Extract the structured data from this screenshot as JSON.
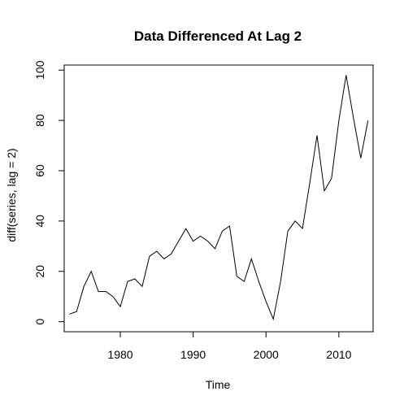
{
  "chart_data": {
    "type": "line",
    "title": "Data Differenced At Lag 2",
    "xlabel": "Time",
    "ylabel": "diff(series, lag = 2)",
    "xlim": [
      1972.3,
      2014.7
    ],
    "ylim": [
      -4,
      102
    ],
    "x_ticks": [
      "1980",
      "1990",
      "2000",
      "2010"
    ],
    "y_ticks": [
      "0",
      "20",
      "40",
      "60",
      "80",
      "100"
    ],
    "grid": false,
    "legend": "none",
    "series": [
      {
        "x": [
          1973,
          1974,
          1975,
          1976,
          1977,
          1978,
          1979,
          1980,
          1981,
          1982,
          1983,
          1984,
          1985,
          1986,
          1987,
          1988,
          1989,
          1990,
          1991,
          1992,
          1993,
          1994,
          1995,
          1996,
          1997,
          1998,
          1999,
          2000,
          2001,
          2002,
          2003,
          2004,
          2005,
          2006,
          2007,
          2008,
          2009,
          2010,
          2011,
          2012,
          2013,
          2014
        ],
        "values": [
          3,
          4,
          14,
          20,
          12,
          12,
          10,
          6,
          16,
          17,
          14,
          26,
          28,
          25,
          27,
          32,
          37,
          32,
          34,
          32,
          29,
          36,
          38,
          18,
          16,
          25,
          16,
          8,
          1,
          16,
          36,
          40,
          37,
          55,
          74,
          52,
          57,
          80,
          98,
          81,
          65,
          80
        ]
      }
    ]
  }
}
